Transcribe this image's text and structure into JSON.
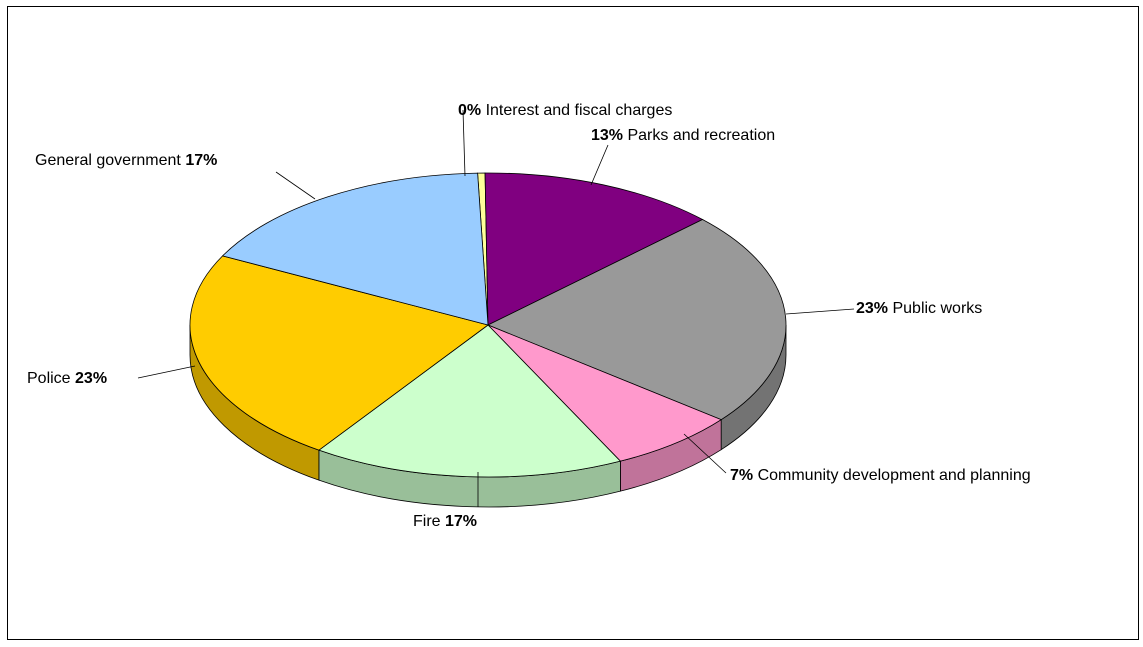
{
  "chart_data": {
    "type": "pie",
    "style": "3d",
    "slices": [
      {
        "label": "Interest and fiscal charges",
        "value": 0,
        "pct_label": "0%",
        "color": "#FFFF99",
        "side_color": "#C8C878"
      },
      {
        "label": "Parks and recreation",
        "value": 13,
        "pct_label": "13%",
        "color": "#800080",
        "side_color": "#5A005A"
      },
      {
        "label": "Public works",
        "value": 23,
        "pct_label": "23%",
        "color": "#999999",
        "side_color": "#737373"
      },
      {
        "label": "Community development and planning",
        "value": 7,
        "pct_label": "7%",
        "color": "#FF99CC",
        "side_color": "#C0739A"
      },
      {
        "label": "Fire",
        "value": 17,
        "pct_label": "17%",
        "color": "#CCFFCC",
        "side_color": "#99BF99"
      },
      {
        "label": "Police",
        "value": 23,
        "pct_label": "23%",
        "color": "#FFCC00",
        "side_color": "#C09900"
      },
      {
        "label": "General government",
        "value": 17,
        "pct_label": "17%",
        "color": "#99CCFF",
        "side_color": "#7399BF"
      }
    ],
    "legend": "none"
  }
}
